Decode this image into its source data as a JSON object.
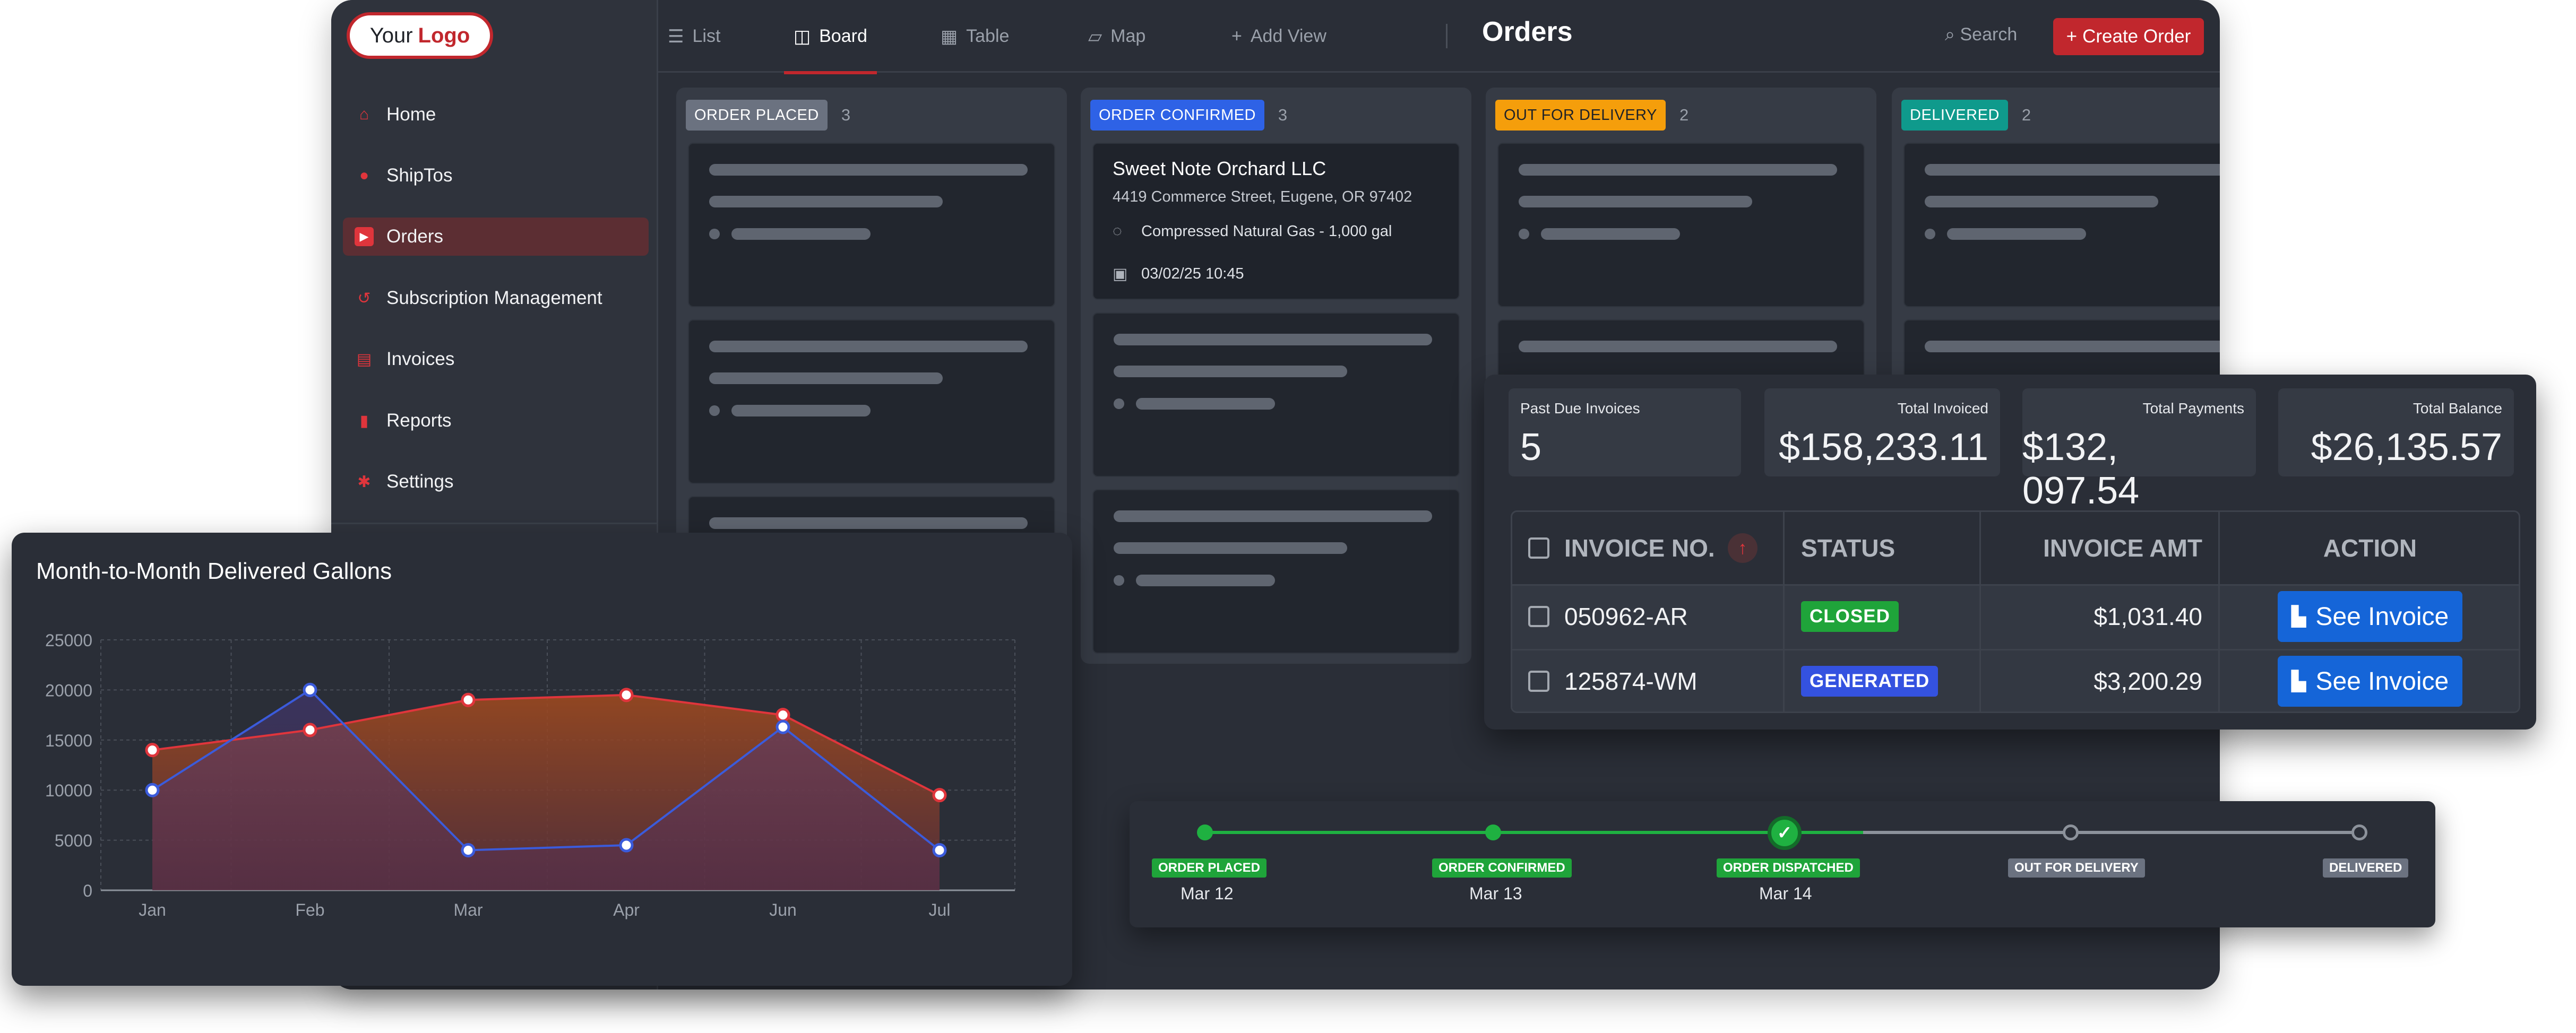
{
  "logo": {
    "your": "Your",
    "logo": "Logo"
  },
  "sidebar": {
    "items": [
      {
        "label": "Home",
        "icon": "home-icon"
      },
      {
        "label": "ShipTos",
        "icon": "location-pin-icon"
      },
      {
        "label": "Orders",
        "icon": "truck-icon",
        "active": true
      },
      {
        "label": "Subscription Management",
        "icon": "history-icon"
      },
      {
        "label": "Invoices",
        "icon": "invoice-icon"
      },
      {
        "label": "Reports",
        "icon": "bar-chart-icon"
      },
      {
        "label": "Settings",
        "icon": "gear-icon"
      }
    ]
  },
  "topbar": {
    "tabs": [
      {
        "label": "List",
        "icon": "list-icon"
      },
      {
        "label": "Board",
        "icon": "board-icon",
        "active": true
      },
      {
        "label": "Table",
        "icon": "table-icon"
      },
      {
        "label": "Map",
        "icon": "map-icon"
      }
    ],
    "add_view": "Add View",
    "title": "Orders",
    "search": "Search",
    "create_order": "Create Order"
  },
  "board": {
    "columns": [
      {
        "label": "ORDER PLACED",
        "count": "3",
        "color": "#6b7280"
      },
      {
        "label": "ORDER CONFIRMED",
        "count": "3",
        "color": "#2e62e6"
      },
      {
        "label": "OUT FOR DELIVERY",
        "count": "2",
        "color": "#f59e0b"
      },
      {
        "label": "DELIVERED",
        "count": "2",
        "color": "#0f9a8c"
      }
    ],
    "order_card": {
      "company": "Sweet Note Orchard LLC",
      "address": "4419 Commerce Street, Eugene, OR 97402",
      "product": "Compressed Natural Gas - 1,000 gal",
      "datetime": "03/02/25 10:45"
    }
  },
  "invoices": {
    "stats": [
      {
        "label": "Past Due Invoices",
        "value": "5"
      },
      {
        "label": "Total Invoiced",
        "value": "$158,233.11"
      },
      {
        "label": "Total Payments",
        "value": "$132, 097.54"
      },
      {
        "label": "Total Balance",
        "value": "$26,135.57"
      }
    ],
    "headers": {
      "invoice_no": "INVOICE NO.",
      "status": "STATUS",
      "amount": "INVOICE AMT",
      "action": "ACTION"
    },
    "rows": [
      {
        "invoice_no": "050962-AR",
        "status": "CLOSED",
        "status_color": "#1fa43a",
        "amount": "$1,031.40",
        "action": "See Invoice"
      },
      {
        "invoice_no": "125874-WM",
        "status": "GENERATED",
        "status_color": "#3452e0",
        "amount": "$3,200.29",
        "action": "See Invoice"
      }
    ]
  },
  "tracker": {
    "steps": [
      {
        "label": "ORDER PLACED",
        "date": "Mar 12",
        "state": "done"
      },
      {
        "label": "ORDER CONFIRMED",
        "date": "Mar 13",
        "state": "done"
      },
      {
        "label": "ORDER DISPATCHED",
        "date": "Mar 14",
        "state": "current"
      },
      {
        "label": "OUT FOR DELIVERY",
        "date": "",
        "state": "todo"
      },
      {
        "label": "DELIVERED",
        "date": "",
        "state": "todo"
      }
    ],
    "colors": {
      "done": "#1fb141",
      "todo": "#6b7280"
    }
  },
  "chart_data": {
    "type": "area",
    "title": "Month-to-Month Delivered Gallons",
    "categories": [
      "Jan",
      "Feb",
      "Mar",
      "Apr",
      "Jun",
      "Jul"
    ],
    "ylim": [
      0,
      25000
    ],
    "yticks": [
      0,
      5000,
      10000,
      15000,
      20000,
      25000
    ],
    "grid": true,
    "series": [
      {
        "values": [
          14000,
          16000,
          19000,
          19500,
          17500,
          9500
        ],
        "color": "#e0353c"
      },
      {
        "values": [
          10000,
          20000,
          4000,
          4500,
          16300,
          4000
        ],
        "color": "#3b5bdb"
      }
    ]
  }
}
